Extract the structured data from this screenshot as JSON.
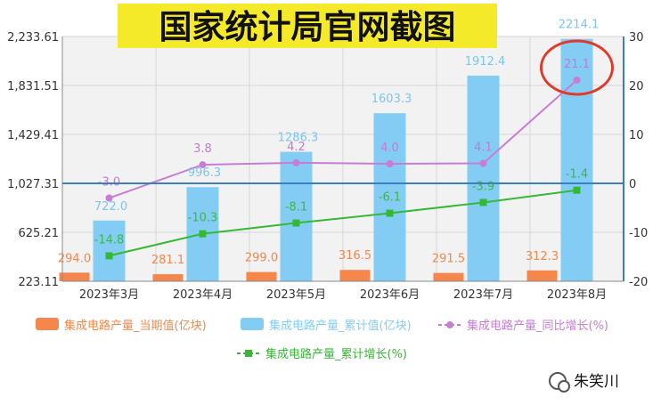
{
  "banner": {
    "text": "国家统计局官网截图"
  },
  "watermark": {
    "text": "朱笑川"
  },
  "colors": {
    "current": "#f5874c",
    "cumulative": "#83cdf5",
    "yoy": "#c87cd6",
    "cum_growth": "#35b935",
    "highlight_circle": "#e23a2a",
    "axis_right": "#3a7fbf"
  },
  "chart_data": {
    "type": "bar",
    "categories": [
      "2023年3月",
      "2023年4月",
      "2023年5月",
      "2023年6月",
      "2023年7月",
      "2023年8月"
    ],
    "y_left": {
      "min": 223.11,
      "max": 2233.61,
      "ticks": [
        "2,233.61",
        "1,831.51",
        "1,429.41",
        "1,027.31",
        "625.21",
        "223.11"
      ]
    },
    "y_right": {
      "min": -20,
      "max": 30,
      "ticks": [
        "30",
        "20",
        "10",
        "0",
        "-10",
        "-20"
      ]
    },
    "grid": true,
    "legend_position": "bottom",
    "series": [
      {
        "name": "集成电路产量_当期值(亿块)",
        "type": "bar",
        "axis": "left",
        "values": [
          294.0,
          281.1,
          299.0,
          316.5,
          291.5,
          312.3
        ],
        "labels": [
          "294.0",
          "281.1",
          "299.0",
          "316.5",
          "291.5",
          "312.3"
        ]
      },
      {
        "name": "集成电路产量_累计值(亿块)",
        "type": "bar",
        "axis": "left",
        "values": [
          722.0,
          996.3,
          1286.3,
          1603.3,
          1912.4,
          2214.1
        ],
        "labels": [
          "722.0",
          "996.3",
          "1286.3",
          "1603.3",
          "1912.4",
          "2214.1"
        ]
      },
      {
        "name": "集成电路产量_同比增长(%)",
        "type": "line",
        "axis": "right",
        "values": [
          -3.0,
          3.8,
          4.2,
          4.0,
          4.1,
          21.1
        ],
        "labels": [
          "-3.0",
          "3.8",
          "4.2",
          "4.0",
          "4.1",
          "21.1"
        ]
      },
      {
        "name": "集成电路产量_累计增长(%)",
        "type": "line",
        "axis": "right",
        "values": [
          -14.8,
          -10.3,
          -8.1,
          -6.1,
          -3.9,
          -1.4
        ],
        "labels": [
          "-14.8",
          "-10.3",
          "-8.1",
          "-6.1",
          "-3.9",
          "-1.4"
        ]
      }
    ]
  }
}
